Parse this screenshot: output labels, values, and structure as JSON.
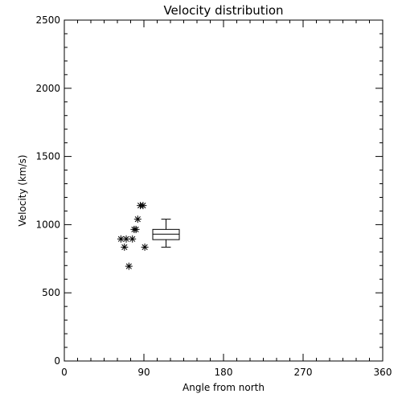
{
  "chart_data": {
    "type": "scatter",
    "title": "Velocity distribution",
    "xlabel": "Angle from north",
    "ylabel": "Velocity (km/s)",
    "xlim": [
      0,
      360
    ],
    "ylim": [
      0,
      2500
    ],
    "x_ticks": [
      0,
      90,
      180,
      270,
      360
    ],
    "x_tick_labels": [
      "0",
      "90",
      "180",
      "270",
      "360"
    ],
    "y_ticks": [
      0,
      500,
      1000,
      1500,
      2000,
      2500
    ],
    "y_tick_labels": [
      "0",
      "500",
      "1000",
      "1500",
      "2000",
      "2500"
    ],
    "grid": false,
    "marker": "asterisk",
    "points": [
      {
        "x": 64,
        "y": 895
      },
      {
        "x": 68,
        "y": 835
      },
      {
        "x": 70,
        "y": 895
      },
      {
        "x": 73,
        "y": 695
      },
      {
        "x": 77,
        "y": 895
      },
      {
        "x": 79,
        "y": 965
      },
      {
        "x": 81,
        "y": 965
      },
      {
        "x": 83,
        "y": 1040
      },
      {
        "x": 86,
        "y": 1140
      },
      {
        "x": 89,
        "y": 1140
      },
      {
        "x": 91,
        "y": 835
      }
    ],
    "boxplot": {
      "x_min": 100,
      "x_max": 130,
      "whisker_low": 835,
      "q1": 890,
      "median": 930,
      "q3": 965,
      "whisker_high": 1040
    }
  }
}
